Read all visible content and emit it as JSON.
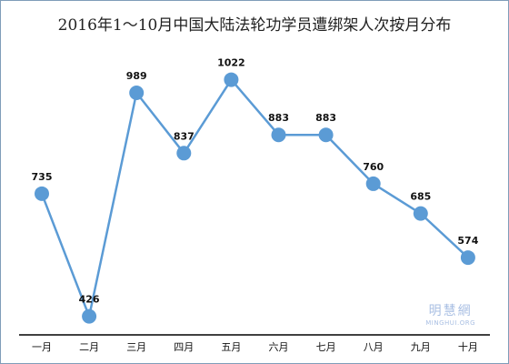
{
  "chart_data": {
    "type": "line",
    "title": "2016年1～10月中国大陆法轮功学员遭绑架人次按月分布",
    "categories": [
      "一月",
      "二月",
      "三月",
      "四月",
      "五月",
      "六月",
      "七月",
      "八月",
      "九月",
      "十月"
    ],
    "series": [
      {
        "values": [
          735,
          426,
          989,
          837,
          1022,
          883,
          883,
          760,
          685,
          574
        ]
      }
    ],
    "ylim": [
      400,
      1060
    ],
    "grid": false,
    "legend": "none",
    "line_color": "#5b9bd5",
    "marker_color": "#5b9bd5"
  },
  "watermark": {
    "logo": "明慧網",
    "text": "MINGHUI.ORG"
  }
}
